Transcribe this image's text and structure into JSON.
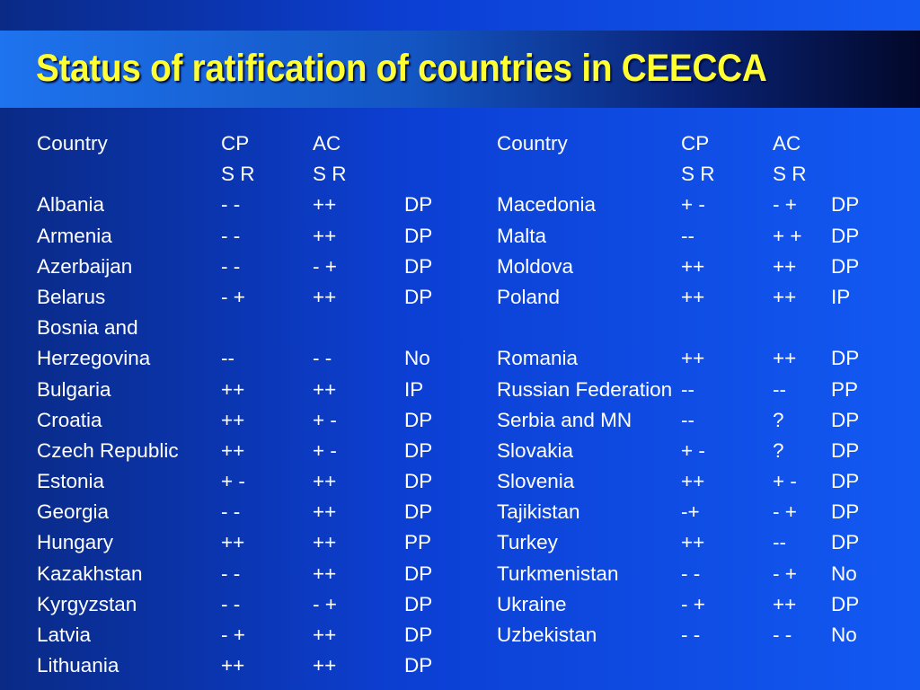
{
  "title": "Status of ratification of countries in CEECCA",
  "left_table": {
    "header": {
      "country": "Country",
      "cp": "CP",
      "ac": "AC",
      "cp_sub": "S R",
      "ac_sub": "S R"
    },
    "rows": [
      {
        "country": "Albania",
        "cp": "- -",
        "ac": "++",
        "status": "DP"
      },
      {
        "country": "Armenia",
        "cp": "- -",
        "ac": "++",
        "status": "DP"
      },
      {
        "country": "Azerbaijan",
        "cp": "- -",
        "ac": "- +",
        "status": "DP"
      },
      {
        "country": "Belarus",
        "cp": "- +",
        "ac": "++",
        "status": "DP"
      },
      {
        "country": "Bosnia and",
        "cp": "",
        "ac": "",
        "status": ""
      },
      {
        "country": "Herzegovina",
        "cp": "--",
        "ac": "- -",
        "status": "No"
      },
      {
        "country": "Bulgaria",
        "cp": "++",
        "ac": "++",
        "status": "IP"
      },
      {
        "country": "Croatia",
        "cp": "++",
        "ac": "+ -",
        "status": "DP"
      },
      {
        "country": "Czech Republic",
        "cp": "++",
        "ac": "+ -",
        "status": "DP"
      },
      {
        "country": "Estonia",
        "cp": "+ -",
        "ac": "++",
        "status": "DP"
      },
      {
        "country": "Georgia",
        "cp": "- -",
        "ac": "++",
        "status": "DP"
      },
      {
        "country": "Hungary",
        "cp": "++",
        "ac": "++",
        "status": "PP"
      },
      {
        "country": "Kazakhstan",
        "cp": "- -",
        "ac": "++",
        "status": "DP"
      },
      {
        "country": "Kyrgyzstan",
        "cp": "- -",
        "ac": "- +",
        "status": "DP"
      },
      {
        "country": "Latvia",
        "cp": "- +",
        "ac": "++",
        "status": "DP"
      },
      {
        "country": "Lithuania",
        "cp": "++",
        "ac": "++",
        "status": "DP"
      }
    ]
  },
  "right_table": {
    "header": {
      "country": "Country",
      "cp": "CP",
      "ac": "AC",
      "cp_sub": "S R",
      "ac_sub": "S R"
    },
    "rows": [
      {
        "country": "Macedonia",
        "cp": "+ -",
        "ac": "-  +",
        "status": "DP"
      },
      {
        "country": "Malta",
        "cp": "--",
        "ac": "+ +",
        "status": "DP"
      },
      {
        "country": "Moldova",
        "cp": "++",
        "ac": "++",
        "status": "DP"
      },
      {
        "country": "Poland",
        "cp": "++",
        "ac": "++",
        "status": "IP"
      },
      {
        "country": "",
        "cp": "",
        "ac": "",
        "status": ""
      },
      {
        "country": "Romania",
        "cp": "++",
        "ac": "++",
        "status": "DP"
      },
      {
        "country": "Russian Federation",
        "cp": "--",
        "ac": "--",
        "status": "PP"
      },
      {
        "country": "Serbia and MN",
        "cp": "--",
        "ac": "?",
        "status": "DP"
      },
      {
        "country": "Slovakia",
        "cp": "+ -",
        "ac": "?",
        "status": "DP"
      },
      {
        "country": "Slovenia",
        "cp": "++",
        "ac": "+ -",
        "status": "DP"
      },
      {
        "country": "Tajikistan",
        "cp": "-+",
        "ac": "- +",
        "status": "DP"
      },
      {
        "country": "Turkey",
        "cp": "++",
        "ac": "--",
        "status": "DP"
      },
      {
        "country": "Turkmenistan",
        "cp": "- -",
        "ac": "- +",
        "status": "No"
      },
      {
        "country": "Ukraine",
        "cp": "- +",
        "ac": "++",
        "status": "DP"
      },
      {
        "country": "Uzbekistan",
        "cp": "- -",
        "ac": "- -",
        "status": "No"
      }
    ]
  },
  "colors": {
    "title": "#ffff33",
    "text": "#ffffff",
    "background": "#0c3fd4"
  }
}
